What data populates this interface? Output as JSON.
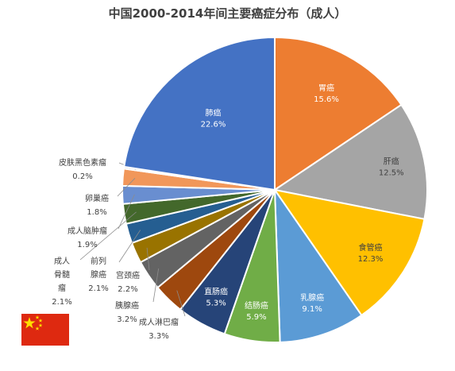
{
  "chart_data": {
    "type": "pie",
    "title": "中国2000-2014年间主要癌症分布（成人）",
    "slices": [
      {
        "label": "胃癌",
        "value": 15.6,
        "display": "15.6%",
        "color": "#ED7D31"
      },
      {
        "label": "肝癌",
        "value": 12.5,
        "display": "12.5%",
        "color": "#A5A5A5"
      },
      {
        "label": "食管癌",
        "value": 12.3,
        "display": "12.3%",
        "color": "#FFC000"
      },
      {
        "label": "乳腺癌",
        "value": 9.1,
        "display": "9.1%",
        "color": "#5B9BD5"
      },
      {
        "label": "结肠癌",
        "value": 5.9,
        "display": "5.9%",
        "color": "#70AD47"
      },
      {
        "label": "直肠癌",
        "value": 5.3,
        "display": "5.3%",
        "color": "#264478"
      },
      {
        "label": "成人淋巴瘤",
        "value": 3.3,
        "display": "3.3%",
        "color": "#9E480E"
      },
      {
        "label": "胰腺癌",
        "value": 3.2,
        "display": "3.2%",
        "color": "#636363"
      },
      {
        "label": "宫颈癌",
        "value": 2.2,
        "display": "2.2%",
        "color": "#997300"
      },
      {
        "label": "前列腺癌",
        "value": 2.1,
        "display": "2.1%",
        "color": "#255E91"
      },
      {
        "label": "成人骨髓瘤",
        "value": 2.1,
        "display": "2.1%",
        "color": "#43682B"
      },
      {
        "label": "成人脑肿瘤",
        "value": 1.9,
        "display": "1.9%",
        "color": "#698ED0"
      },
      {
        "label": "卵巢癌",
        "value": 1.8,
        "display": "1.8%",
        "color": "#F1975A"
      },
      {
        "label": "皮肤黑色素瘤",
        "value": 0.2,
        "display": "0.2%",
        "color": "#B7B7B7"
      },
      {
        "label": "肺癌",
        "value": 22.6,
        "display": "22.6%",
        "color": "#4472C4"
      }
    ]
  }
}
